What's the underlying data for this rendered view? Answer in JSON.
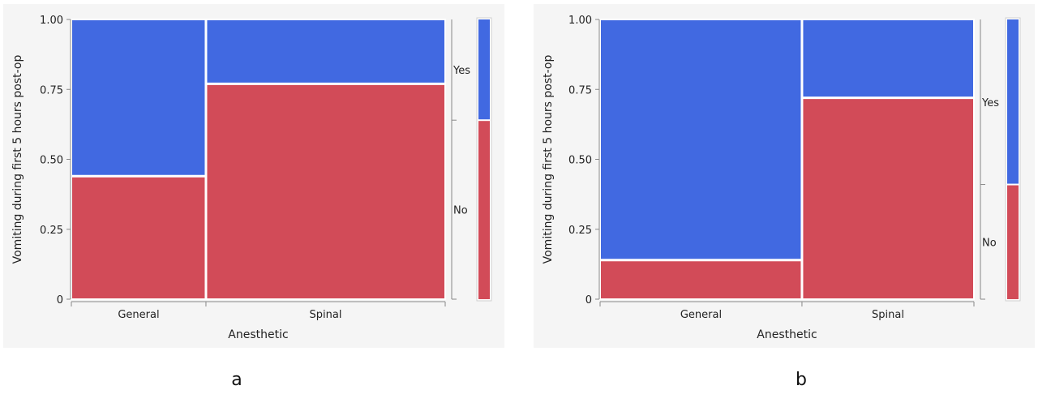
{
  "colors": {
    "yes": "#4169e1",
    "no": "#d24b58",
    "panel_bg": "#f5f5f5",
    "axis": "#888888",
    "divider": "#ffffff"
  },
  "captions": [
    "a",
    "b"
  ],
  "chart_data": [
    {
      "type": "mosaic",
      "xlabel": "Anesthetic",
      "ylabel": "Vomiting during first 5 hours post-op",
      "ylim": [
        0,
        1
      ],
      "yticks": [
        "0",
        "0.25",
        "0.50",
        "0.75",
        "1.00"
      ],
      "categories": [
        "General",
        "Spinal"
      ],
      "category_share": [
        0.36,
        0.64
      ],
      "series": [
        {
          "name": "No",
          "values": [
            0.44,
            0.77
          ]
        },
        {
          "name": "Yes",
          "values": [
            0.56,
            0.23
          ]
        }
      ],
      "overall": {
        "No": 0.64,
        "Yes": 0.36
      }
    },
    {
      "type": "mosaic",
      "xlabel": "Anesthetic",
      "ylabel": "Vomiting during first 5 hours post-op",
      "ylim": [
        0,
        1
      ],
      "yticks": [
        "0",
        "0.25",
        "0.50",
        "0.75",
        "1.00"
      ],
      "categories": [
        "General",
        "Spinal"
      ],
      "category_share": [
        0.54,
        0.46
      ],
      "series": [
        {
          "name": "No",
          "values": [
            0.14,
            0.72
          ]
        },
        {
          "name": "Yes",
          "values": [
            0.86,
            0.28
          ]
        }
      ],
      "overall": {
        "No": 0.41,
        "Yes": 0.59
      }
    }
  ]
}
